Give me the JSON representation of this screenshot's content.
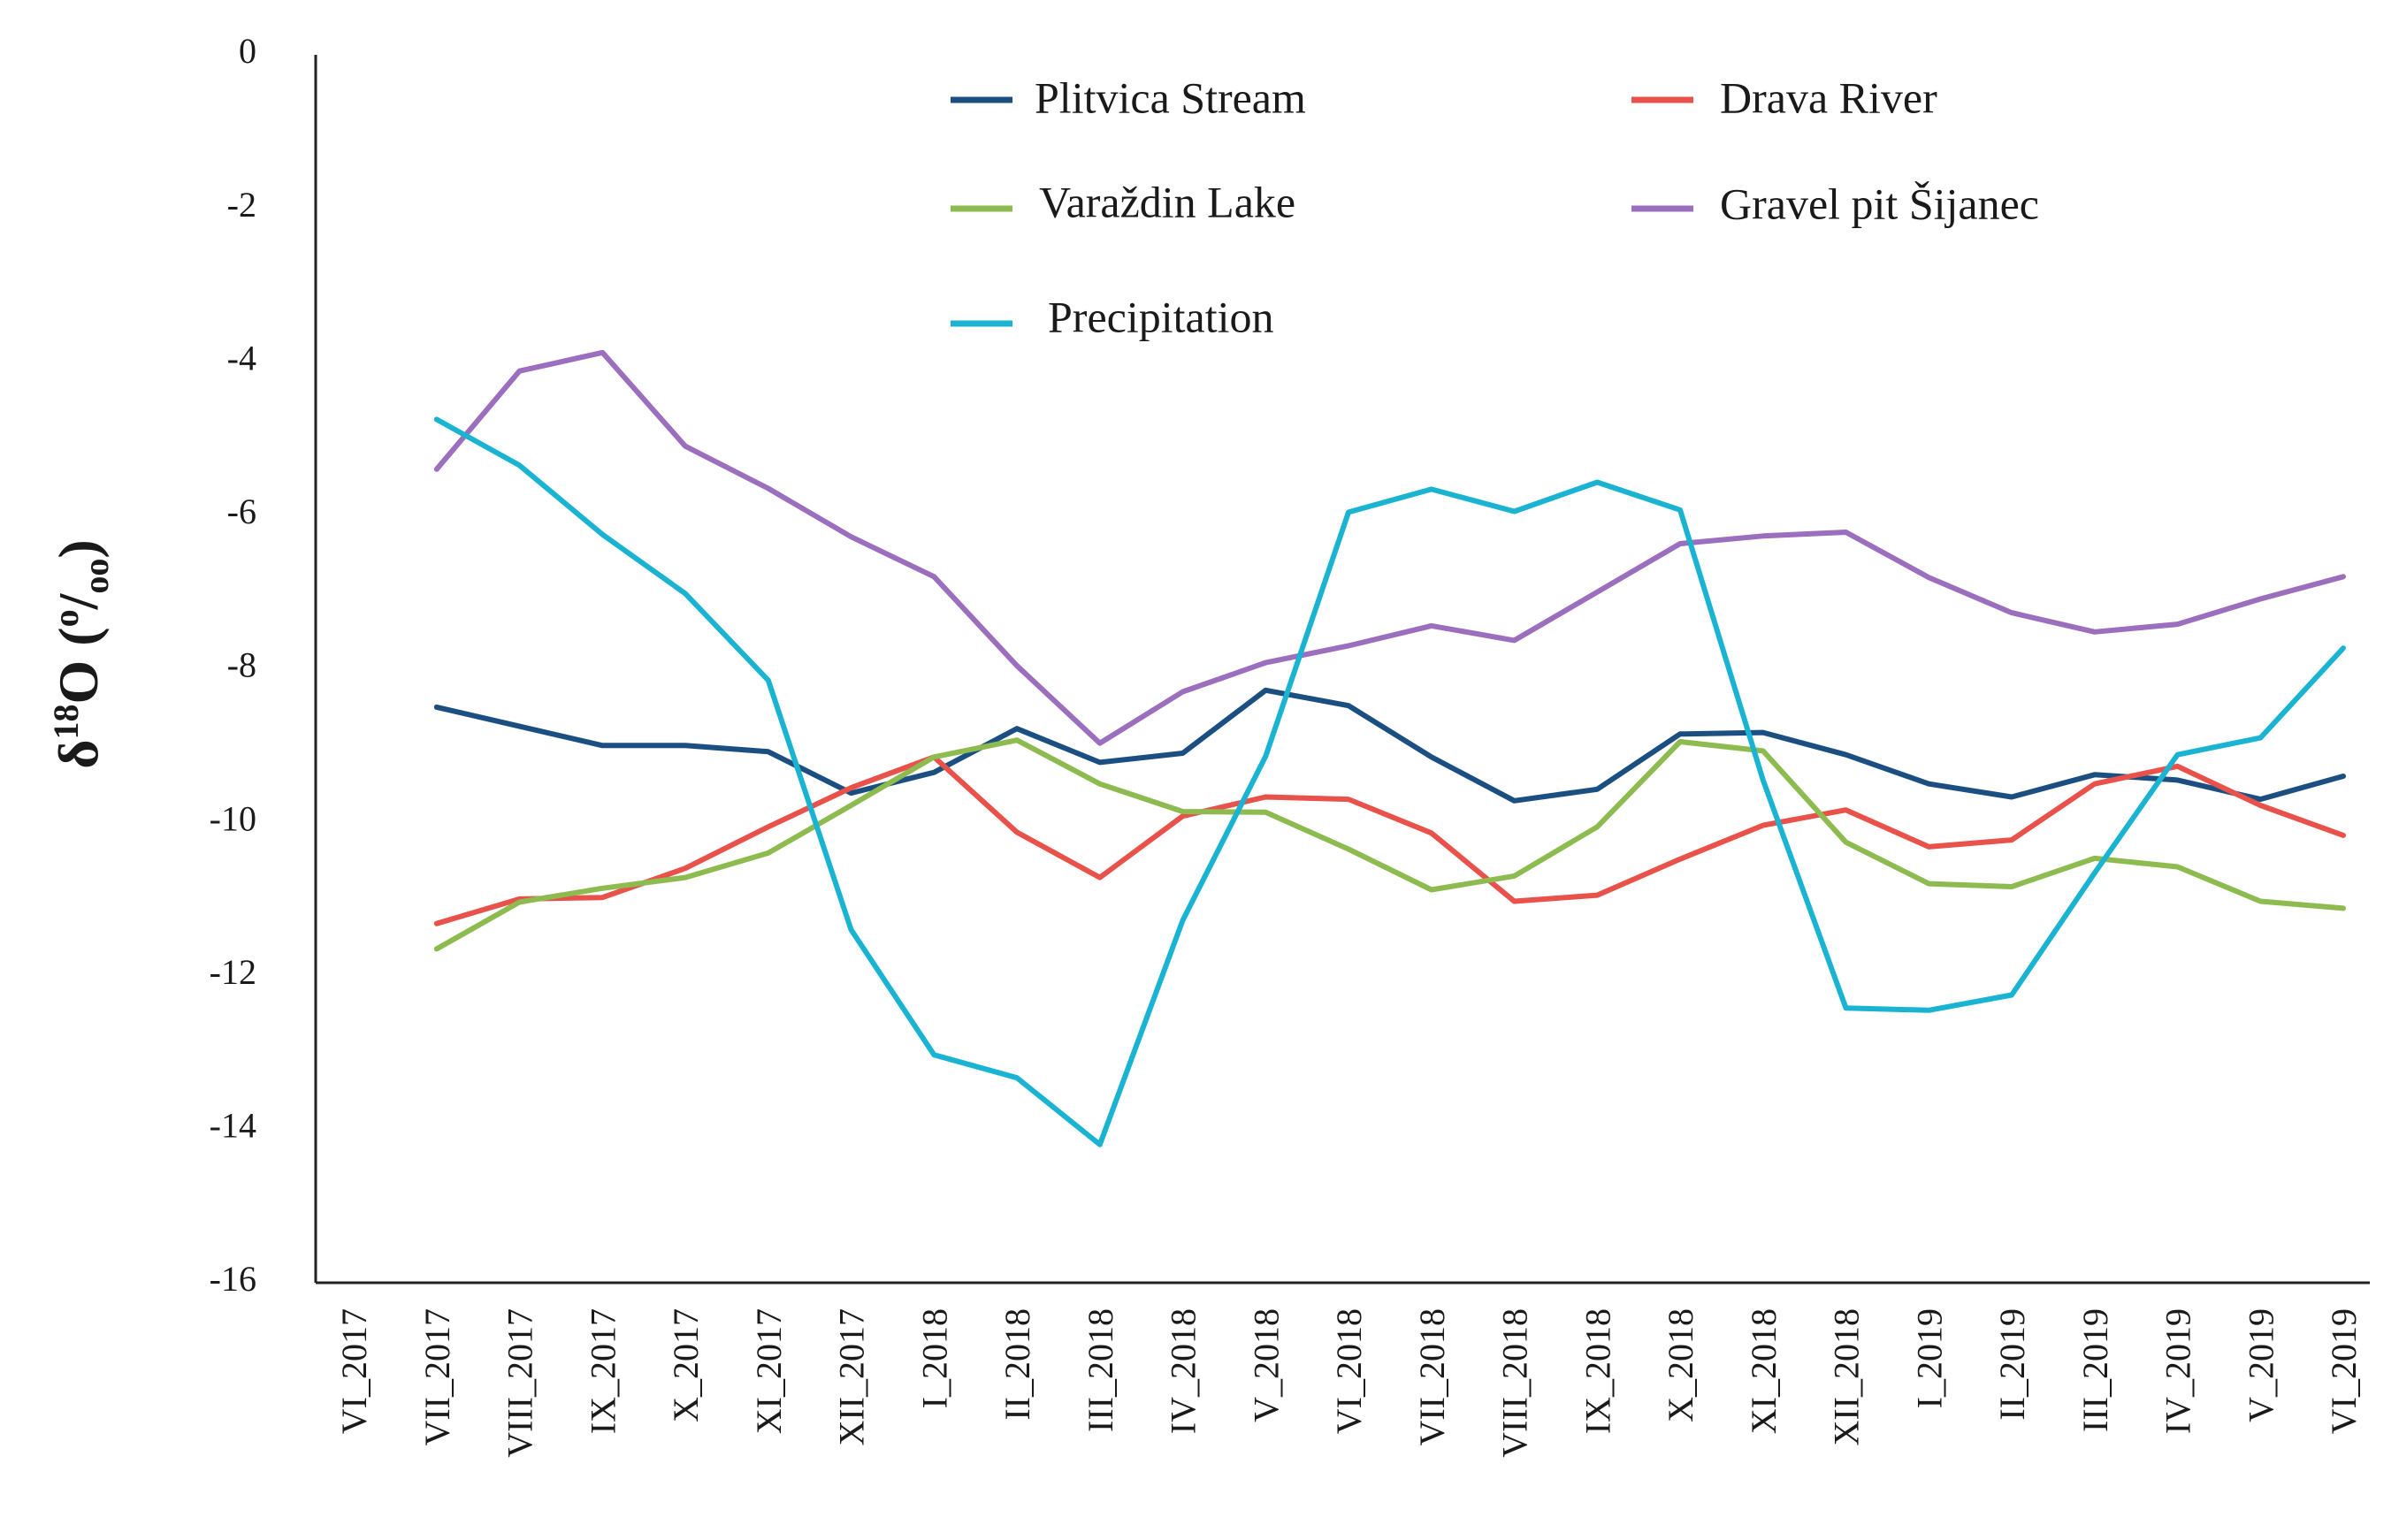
{
  "chart_data": {
    "type": "line",
    "title": "",
    "xlabel": "",
    "ylabel": "δ18O (o/oo)",
    "ylabel_parts": {
      "delta": "δ",
      "sup": "18",
      "letter": "O",
      "open": " (",
      "o": "o",
      "slash": "/",
      "oo": "oo",
      "close": ")"
    },
    "ylim": [
      -16,
      0
    ],
    "yticks": [
      0,
      -2,
      -4,
      -6,
      -8,
      -10,
      -12,
      -14,
      -16
    ],
    "legend_position": "top",
    "categories": [
      "VI_2017",
      "VII_2017",
      "VIII_2017",
      "IX_2017",
      "X_2017",
      "XI_2017",
      "XII_2017",
      "I_2018",
      "II_2018",
      "III_2018",
      "IV_2018",
      "V_2018",
      "VI_2018",
      "VII_2018",
      "VIII_2018",
      "IX_2018",
      "X_2018",
      "XI_2018",
      "XII_2018",
      "I_2019",
      "II_2019",
      "III_2019",
      "IV_2019",
      "V_2019",
      "VI_2019"
    ],
    "series": [
      {
        "name": "Plitvica Stream",
        "color": "#1b4f82",
        "values": [
          null,
          -8.5,
          -8.75,
          -9.0,
          -9.0,
          -9.08,
          -9.62,
          -9.35,
          -8.78,
          -9.22,
          -9.1,
          -8.28,
          -8.48,
          -9.15,
          -9.72,
          -9.57,
          -8.85,
          -8.83,
          -9.12,
          -9.5,
          -9.67,
          -9.38,
          -9.45,
          -9.7,
          -9.4
        ]
      },
      {
        "name": "Drava River",
        "color": "#e8524a",
        "values": [
          null,
          -11.32,
          -11.0,
          -10.98,
          -10.6,
          -10.06,
          -9.55,
          -9.15,
          -10.13,
          -10.72,
          -9.92,
          -9.67,
          -9.7,
          -10.14,
          -11.03,
          -10.95,
          -10.48,
          -10.04,
          -9.84,
          -10.32,
          -10.23,
          -9.5,
          -9.27,
          -9.78,
          -10.17
        ]
      },
      {
        "name": "Varaždin Lake",
        "color": "#8dbb4f",
        "values": [
          null,
          -11.65,
          -11.04,
          -10.86,
          -10.72,
          -10.4,
          -9.78,
          -9.15,
          -8.93,
          -9.5,
          -9.86,
          -9.87,
          -10.35,
          -10.88,
          -10.7,
          -10.06,
          -8.95,
          -9.07,
          -10.26,
          -10.8,
          -10.84,
          -10.47,
          -10.58,
          -11.03,
          -11.12
        ]
      },
      {
        "name": "Gravel pit Šijanec",
        "color": "#9b6fbd",
        "values": [
          null,
          -5.4,
          -4.12,
          -3.88,
          -5.1,
          -5.65,
          -6.28,
          -6.8,
          -7.96,
          -8.97,
          -8.3,
          -7.92,
          -7.7,
          -7.44,
          -7.63,
          -7.0,
          -6.37,
          -6.27,
          -6.22,
          -6.81,
          -7.27,
          -7.52,
          -7.42,
          -7.09,
          -6.8
        ]
      },
      {
        "name": "Precipitation",
        "color": "#1ab4d2",
        "values": [
          null,
          -4.75,
          -5.35,
          -6.25,
          -7.02,
          -8.15,
          -11.4,
          -13.03,
          -13.33,
          -14.2,
          -11.28,
          -9.14,
          -5.96,
          -5.66,
          -5.95,
          -5.57,
          -5.93,
          -9.45,
          -12.42,
          -12.45,
          -12.25,
          -10.66,
          -9.12,
          -8.9,
          -7.73
        ]
      }
    ]
  }
}
